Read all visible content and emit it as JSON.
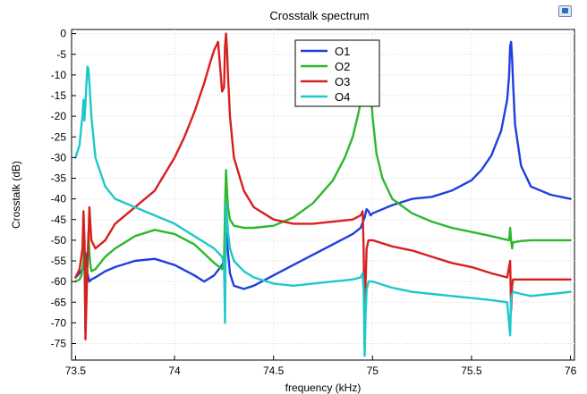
{
  "toolbar": {
    "icon": "image-export-icon"
  },
  "chart_data": {
    "type": "line",
    "title": "Crosstalk spectrum",
    "xlabel": "frequency (kHz)",
    "ylabel": "Crosstalk (dB)",
    "xlim": [
      73.48,
      76.02
    ],
    "ylim": [
      -79,
      1
    ],
    "x_ticks": [
      73.5,
      74,
      74.5,
      75,
      75.5,
      76
    ],
    "y_ticks": [
      0,
      -5,
      -10,
      -15,
      -20,
      -25,
      -30,
      -35,
      -40,
      -45,
      -50,
      -55,
      -60,
      -65,
      -70,
      -75
    ],
    "grid": true,
    "legend_position": "top-center",
    "series": [
      {
        "name": "O1",
        "color": "#1f3fe0",
        "x": [
          73.5,
          73.52,
          73.535,
          73.545,
          73.55,
          73.56,
          73.57,
          73.58,
          73.6,
          73.65,
          73.7,
          73.8,
          73.9,
          74.0,
          74.1,
          74.15,
          74.2,
          74.24,
          74.25,
          74.26,
          74.28,
          74.3,
          74.35,
          74.4,
          74.5,
          74.6,
          74.7,
          74.8,
          74.9,
          74.94,
          74.96,
          74.97,
          74.98,
          74.99,
          75.0,
          75.1,
          75.2,
          75.3,
          75.4,
          75.5,
          75.55,
          75.6,
          75.65,
          75.68,
          75.69,
          75.695,
          75.7,
          75.705,
          75.71,
          75.72,
          75.75,
          75.8,
          75.9,
          76.0
        ],
        "values": [
          -59,
          -58,
          -57,
          -57,
          -53,
          -58,
          -60,
          -59.5,
          -59,
          -57.5,
          -56.5,
          -55,
          -54.5,
          -56,
          -58.5,
          -60,
          -58.5,
          -56,
          -55,
          -48,
          -58,
          -61,
          -61.8,
          -61,
          -58.5,
          -56,
          -53.5,
          -51,
          -48.5,
          -47,
          -44.5,
          -42.5,
          -43,
          -44,
          -43.5,
          -41.5,
          -40,
          -39.5,
          -38,
          -35.5,
          -33,
          -29.5,
          -23.5,
          -16,
          -10,
          -3,
          -2,
          -6,
          -12,
          -22,
          -32,
          -37,
          -39,
          -40
        ]
      },
      {
        "name": "O2",
        "color": "#2db82d",
        "x": [
          73.5,
          73.52,
          73.53,
          73.54,
          73.545,
          73.55,
          73.555,
          73.56,
          73.565,
          73.57,
          73.575,
          73.58,
          73.6,
          73.65,
          73.7,
          73.8,
          73.9,
          74.0,
          74.1,
          74.2,
          74.24,
          74.25,
          74.255,
          74.26,
          74.265,
          74.27,
          74.28,
          74.3,
          74.35,
          74.4,
          74.5,
          74.6,
          74.7,
          74.8,
          74.86,
          74.9,
          74.93,
          74.95,
          74.97,
          74.98,
          74.99,
          75.0,
          75.02,
          75.05,
          75.1,
          75.2,
          75.3,
          75.4,
          75.5,
          75.6,
          75.69,
          75.695,
          75.7,
          75.705,
          75.71,
          75.75,
          75.8,
          75.9,
          76.0
        ],
        "values": [
          -60,
          -59.5,
          -58.5,
          -55,
          -50,
          -72,
          -58,
          -56,
          -48,
          -53,
          -56,
          -57.5,
          -57,
          -54,
          -52,
          -49,
          -47.5,
          -48.5,
          -51,
          -55.5,
          -57,
          -55,
          -42,
          -33,
          -38,
          -42,
          -45,
          -46.5,
          -47,
          -47,
          -46.5,
          -44.5,
          -41,
          -35.5,
          -30,
          -25,
          -19,
          -14,
          -11,
          -10,
          -12,
          -20,
          -29,
          -35,
          -40,
          -43.5,
          -45.5,
          -47,
          -48,
          -49,
          -50,
          -47,
          -50,
          -52,
          -50.5,
          -50.2,
          -50,
          -50,
          -50
        ]
      },
      {
        "name": "O3",
        "color": "#d62020",
        "x": [
          73.5,
          73.52,
          73.535,
          73.54,
          73.545,
          73.55,
          73.555,
          73.56,
          73.565,
          73.57,
          73.575,
          73.58,
          73.6,
          73.65,
          73.7,
          73.8,
          73.9,
          74.0,
          74.05,
          74.1,
          74.15,
          74.18,
          74.2,
          74.22,
          74.24,
          74.25,
          74.255,
          74.26,
          74.265,
          74.27,
          74.28,
          74.3,
          74.35,
          74.4,
          74.5,
          74.6,
          74.7,
          74.8,
          74.9,
          74.94,
          74.95,
          74.955,
          74.96,
          74.965,
          74.97,
          74.98,
          75.0,
          75.1,
          75.2,
          75.3,
          75.4,
          75.5,
          75.6,
          75.68,
          75.695,
          75.7,
          75.705,
          75.71,
          75.75,
          75.8,
          75.9,
          76.0
        ],
        "values": [
          -59,
          -57,
          -52,
          -43,
          -50,
          -74,
          -65,
          -56,
          -50,
          -42,
          -46,
          -50,
          -52,
          -50,
          -46,
          -42,
          -38,
          -30,
          -25,
          -19,
          -12,
          -7,
          -4,
          -2,
          -14,
          -13,
          -3,
          0,
          -4,
          -10,
          -20,
          -30,
          -38,
          -42,
          -45,
          -46,
          -46,
          -45.5,
          -45,
          -44,
          -43,
          -52,
          -75,
          -60,
          -52,
          -50,
          -50,
          -51.5,
          -52.5,
          -54,
          -55.5,
          -56.5,
          -58,
          -59,
          -55,
          -67,
          -61,
          -59.5,
          -59.5,
          -59.5,
          -59.5,
          -59.5
        ]
      },
      {
        "name": "O4",
        "color": "#1ec8c8",
        "x": [
          73.5,
          73.52,
          73.53,
          73.535,
          73.54,
          73.545,
          73.55,
          73.555,
          73.56,
          73.565,
          73.57,
          73.58,
          73.6,
          73.65,
          73.7,
          73.8,
          73.9,
          74.0,
          74.1,
          74.2,
          74.24,
          74.25,
          74.255,
          74.26,
          74.27,
          74.28,
          74.3,
          74.35,
          74.4,
          74.5,
          74.6,
          74.7,
          74.8,
          74.9,
          74.94,
          74.95,
          74.955,
          74.96,
          74.965,
          74.97,
          74.98,
          75.0,
          75.1,
          75.2,
          75.3,
          75.4,
          75.5,
          75.6,
          75.68,
          75.695,
          75.7,
          75.705,
          75.71,
          75.75,
          75.8,
          75.9,
          76.0
        ],
        "values": [
          -30,
          -27,
          -22,
          -20,
          -16,
          -21,
          -17,
          -12,
          -8,
          -8.5,
          -12,
          -20,
          -30,
          -37,
          -40,
          -42,
          -44,
          -46,
          -49,
          -52,
          -54,
          -56,
          -70,
          -41,
          -48,
          -52,
          -55,
          -57.5,
          -59,
          -60.5,
          -61,
          -60.5,
          -60,
          -59.5,
          -59,
          -58,
          -62,
          -78,
          -68,
          -62,
          -60,
          -60,
          -61.5,
          -62.5,
          -63,
          -63.5,
          -64,
          -64.5,
          -65,
          -73,
          -64,
          -63,
          -62.5,
          -63,
          -63.5,
          -63,
          -62.5
        ]
      }
    ]
  }
}
